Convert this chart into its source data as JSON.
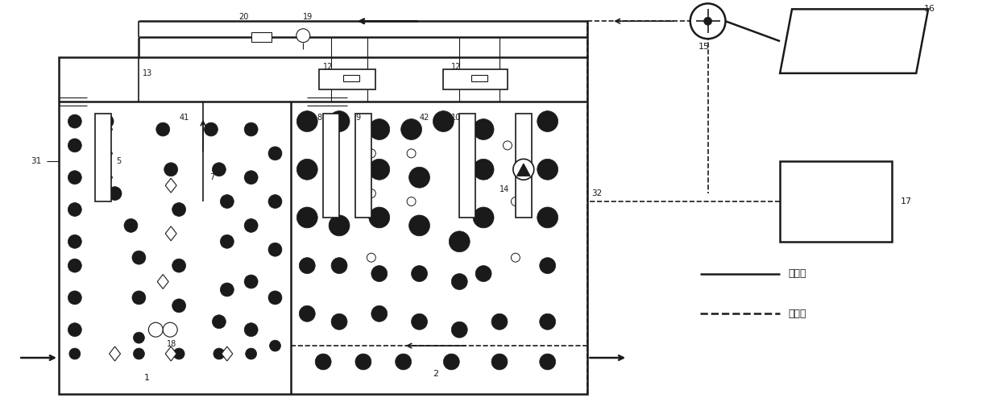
{
  "bg_color": "#ffffff",
  "line_color": "#1a1a1a",
  "figsize": [
    12.4,
    5.2
  ],
  "dpi": 100,
  "legend_solid_label": "污水管",
  "legend_dashed_label": "曝气管"
}
